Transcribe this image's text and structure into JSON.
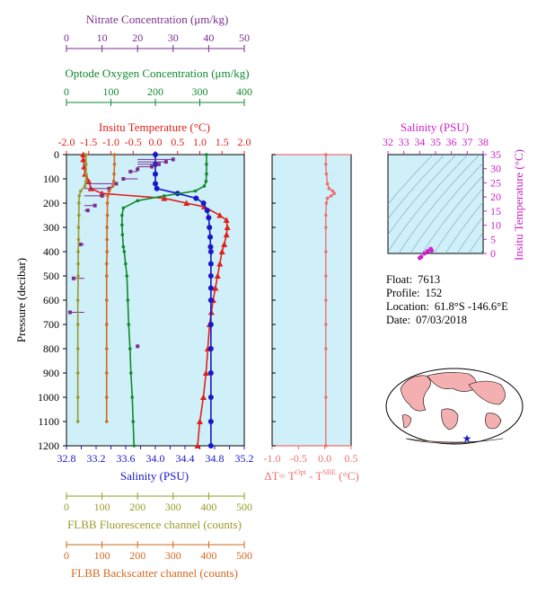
{
  "colors": {
    "panel_bg": "#cfeff9",
    "nitrate": "#7b2f8f",
    "oxygen": "#118a2e",
    "temperature": "#e0201a",
    "salinity": "#1818c8",
    "fluorescence": "#9a9a2a",
    "backscatter": "#d2691e",
    "delta_t": "#f07070",
    "ts_axis": "#cc22cc",
    "map_land": "#f4b0b0",
    "map_float": "#1818c8"
  },
  "info": {
    "float_label": "Float:",
    "float_value": "7613",
    "profile_label": "Profile:",
    "profile_value": "152",
    "location_label": "Location:",
    "location_value": "61.8°S  -146.6°E",
    "date_label": "Date:",
    "date_value": "07/03/2018"
  },
  "chart_data": [
    {
      "type": "line",
      "panel": "main-profile",
      "ylabel": "Pressure (decibar)",
      "ylim": [
        1200,
        0
      ],
      "yticks": [
        "0",
        "100",
        "200",
        "300",
        "400",
        "500",
        "600",
        "700",
        "800",
        "900",
        "1000",
        "1100",
        "1200"
      ],
      "axes": {
        "nitrate": {
          "label": "Nitrate Concentration (μm/kg)",
          "lim": [
            0,
            50
          ],
          "ticks": [
            "0",
            "10",
            "20",
            "30",
            "40",
            "50"
          ]
        },
        "oxygen": {
          "label": "Optode Oxygen Concentration (μm/kg)",
          "lim": [
            0,
            400
          ],
          "ticks": [
            "0",
            "100",
            "200",
            "300",
            "400"
          ]
        },
        "temperature": {
          "label": "Insitu Temperature (°C)",
          "lim": [
            -2.0,
            2.0
          ],
          "ticks": [
            "-2.0",
            "-1.5",
            "-1.0",
            "-0.5",
            "0.0",
            "0.5",
            "1.0",
            "1.5",
            "2.0"
          ]
        },
        "salinity": {
          "label": "Salinity (PSU)",
          "lim": [
            32.8,
            35.2
          ],
          "ticks": [
            "32.8",
            "33.0",
            "33.2",
            "33.4",
            "33.6",
            "33.8",
            "34.0",
            "34.2",
            "34.4",
            "34.6",
            "34.8",
            "35.0",
            "35.2"
          ]
        },
        "fluorescence": {
          "label": "FLBB Fluorescence channel (counts)",
          "lim": [
            0,
            500
          ],
          "ticks": [
            "0",
            "100",
            "200",
            "300",
            "400",
            "500"
          ]
        },
        "backscatter": {
          "label": "FLBB Backscatter channel (counts)",
          "lim": [
            0,
            500
          ],
          "ticks": [
            "0",
            "100",
            "200",
            "300",
            "400",
            "500"
          ]
        }
      },
      "series": [
        {
          "key": "temperature",
          "x": [
            -1.62,
            -1.62,
            -1.6,
            -1.58,
            -1.5,
            -1.45,
            -1.2,
            0.2,
            0.7,
            1.1,
            1.45,
            1.6,
            1.62,
            1.6,
            1.55,
            1.5,
            1.45,
            1.4,
            1.35,
            1.3,
            1.26,
            1.22,
            1.18,
            1.14,
            1.08,
            1.0,
            0.95
          ],
          "y": [
            0,
            20,
            50,
            80,
            110,
            140,
            160,
            180,
            200,
            215,
            250,
            270,
            300,
            330,
            370,
            400,
            450,
            500,
            550,
            600,
            650,
            700,
            800,
            900,
            1000,
            1100,
            1200
          ]
        },
        {
          "key": "salinity",
          "x": [
            34.0,
            34.0,
            34.0,
            34.0,
            34.02,
            34.3,
            34.55,
            34.65,
            34.7,
            34.72,
            34.73,
            34.74,
            34.745,
            34.75,
            34.75,
            34.75,
            34.75,
            34.75,
            34.75,
            34.75,
            34.75,
            34.75,
            34.75,
            34.75
          ],
          "y": [
            0,
            40,
            80,
            120,
            140,
            160,
            180,
            200,
            230,
            260,
            300,
            340,
            380,
            400,
            450,
            500,
            550,
            600,
            700,
            800,
            900,
            1000,
            1100,
            1200
          ]
        },
        {
          "key": "oxygen",
          "x": [
            315,
            315,
            315,
            314,
            310,
            290,
            220,
            160,
            128,
            125,
            125,
            126,
            128,
            130,
            133,
            136,
            138,
            140,
            143,
            145,
            148,
            150,
            152
          ],
          "y": [
            0,
            40,
            80,
            110,
            130,
            150,
            170,
            190,
            220,
            250,
            290,
            330,
            380,
            400,
            450,
            500,
            600,
            700,
            800,
            900,
            1000,
            1100,
            1200
          ]
        },
        {
          "key": "nitrate",
          "x": [
            30,
            28,
            26,
            24,
            20,
            18,
            16,
            14,
            12,
            10,
            8,
            6,
            4,
            2,
            1,
            20
          ],
          "y": [
            20,
            30,
            40,
            50,
            60,
            70,
            100,
            120,
            140,
            170,
            210,
            230,
            370,
            510,
            650,
            790
          ]
        },
        {
          "key": "fluorescence",
          "x": [
            55,
            55,
            55,
            55,
            52,
            40,
            36,
            35,
            35,
            34,
            34,
            33,
            33,
            33,
            32,
            32,
            32,
            32,
            32,
            32
          ],
          "y": [
            0,
            40,
            80,
            110,
            130,
            150,
            170,
            200,
            250,
            300,
            350,
            400,
            450,
            500,
            600,
            700,
            800,
            900,
            1000,
            1100
          ]
        },
        {
          "key": "backscatter",
          "x": [
            135,
            135,
            134,
            133,
            130,
            120,
            116,
            115,
            115,
            114,
            114,
            114,
            113,
            113,
            113,
            113,
            113,
            113,
            113,
            113
          ],
          "y": [
            0,
            40,
            80,
            110,
            130,
            150,
            170,
            200,
            250,
            300,
            350,
            400,
            450,
            500,
            600,
            700,
            800,
            900,
            1000,
            1100
          ]
        }
      ]
    },
    {
      "type": "line",
      "panel": "delta-t",
      "xlabel": "ΔT= T",
      "xlabel_sup1": "Opt",
      "xlabel_mid": " - T",
      "xlabel_sup2": "SBE",
      "xlabel_unit": " (°C)",
      "xlim": [
        -1.0,
        0.5
      ],
      "ylim": [
        1200,
        0
      ],
      "xticks": [
        "-1.0",
        "-0.5",
        "0.0",
        "0.5"
      ],
      "x": [
        0.02,
        0.02,
        0.03,
        0.05,
        0.08,
        0.15,
        0.18,
        0.12,
        0.05,
        0.03,
        0.02,
        0.02,
        0.02,
        0.02,
        0.02,
        0.02,
        0.02,
        0.02,
        0.02
      ],
      "y": [
        0,
        40,
        80,
        120,
        140,
        150,
        160,
        170,
        180,
        200,
        250,
        300,
        400,
        500,
        600,
        700,
        800,
        1000,
        1200
      ]
    },
    {
      "type": "scatter",
      "panel": "ts-diagram",
      "title": "Salinity (PSU)",
      "xlim": [
        32,
        38
      ],
      "xticks": [
        "32",
        "33",
        "34",
        "35",
        "36",
        "37",
        "38"
      ],
      "ylabel": "Insitu Temperature (°C)",
      "ylim": [
        0,
        35
      ],
      "yticks": [
        "0",
        "5",
        "10",
        "15",
        "20",
        "25",
        "30",
        "35"
      ],
      "x": [
        34.0,
        34.1,
        34.3,
        34.5,
        34.7,
        34.75
      ],
      "y": [
        -1.6,
        -1.2,
        0.0,
        0.8,
        1.6,
        1.0
      ]
    }
  ]
}
